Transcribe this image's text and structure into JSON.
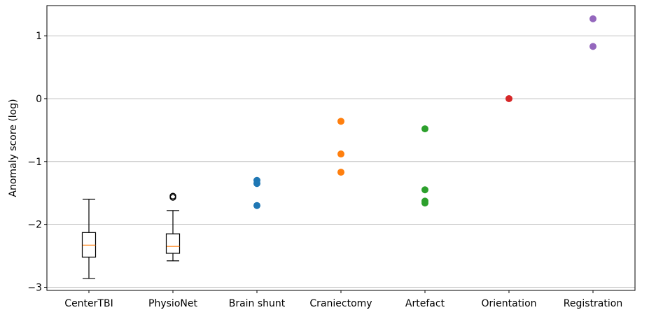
{
  "chart_data": {
    "type": "scatter",
    "title": "",
    "xlabel": "",
    "ylabel": "Anomaly score (log)",
    "ylim": [
      -3.05,
      1.48
    ],
    "yticks": [
      {
        "value": -3,
        "label": "−3"
      },
      {
        "value": -2,
        "label": "−2"
      },
      {
        "value": -1,
        "label": "−1"
      },
      {
        "value": 0,
        "label": "0"
      },
      {
        "value": 1,
        "label": "1"
      }
    ],
    "grid": "y",
    "categories": [
      "CenterTBI",
      "PhysioNet",
      "Brain shunt",
      "Craniectomy",
      "Artefact",
      "Orientation",
      "Registration"
    ],
    "boxplots": [
      {
        "category": "CenterTBI",
        "whisker_low": -2.86,
        "q1": -2.52,
        "median": -2.33,
        "q3": -2.13,
        "whisker_high": -1.6,
        "outliers": []
      },
      {
        "category": "PhysioNet",
        "whisker_low": -2.58,
        "q1": -2.46,
        "median": -2.35,
        "q3": -2.15,
        "whisker_high": -1.78,
        "outliers": [
          -1.55,
          -1.57
        ]
      }
    ],
    "series": [
      {
        "category": "Brain shunt",
        "color": "#1f77b4",
        "values": [
          -1.3,
          -1.35,
          -1.7
        ]
      },
      {
        "category": "Craniectomy",
        "color": "#ff7f0e",
        "values": [
          -0.36,
          -0.88,
          -1.17
        ]
      },
      {
        "category": "Artefact",
        "color": "#2ca02c",
        "values": [
          -0.48,
          -1.45,
          -1.63,
          -1.66
        ]
      },
      {
        "category": "Orientation",
        "color": "#d62728",
        "values": [
          0.0
        ]
      },
      {
        "category": "Registration",
        "color": "#9467bd",
        "values": [
          1.27,
          0.83
        ]
      }
    ],
    "median_color": "#ff7f0e"
  }
}
